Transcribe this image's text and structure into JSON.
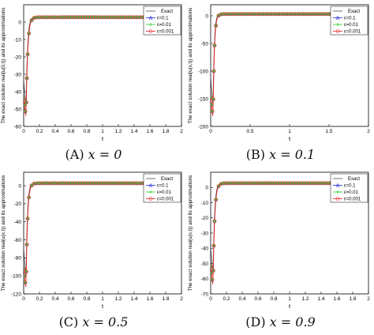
{
  "chart_data": [
    {
      "type": "line",
      "panel_label": "(A)",
      "caption_expr": "x = 0",
      "xlabel": "t",
      "ylabel": "The exact solution real(u(0,t)) and its approximations",
      "xlim": [
        0,
        2
      ],
      "ylim": [
        -60,
        10
      ],
      "xticks": [
        "0",
        "0.2",
        "0.4",
        "0.6",
        "0.8",
        "1",
        "1.2",
        "1.4",
        "1.6",
        "1.8",
        "2"
      ],
      "xtick_values": [
        0,
        0.2,
        0.4,
        0.6,
        0.8,
        1,
        1.2,
        1.4,
        1.6,
        1.8,
        2
      ],
      "yticks": [
        "-60",
        "-50",
        "-40",
        "-30",
        "-20",
        "-10",
        "0"
      ],
      "ytick_values": [
        -60,
        -50,
        -40,
        -30,
        -20,
        -10,
        0
      ],
      "legend": [
        "Exact",
        "ε=0.1",
        "ε=0.01",
        "ε=0.001"
      ],
      "legend_position": "top-right",
      "min_value": -55,
      "plateau": 2.8,
      "rise_rate": 50,
      "grid": false
    },
    {
      "type": "line",
      "panel_label": "(B)",
      "caption_expr": "x = 0.1",
      "xlabel": "t",
      "ylabel": "The exact solution real(u(x,t)) and its approximations",
      "xlim": [
        0,
        2
      ],
      "ylim": [
        -200,
        20
      ],
      "xticks": [
        "0",
        "0.5",
        "1",
        "1.5",
        "2"
      ],
      "xtick_values": [
        0,
        0.5,
        1,
        1.5,
        2
      ],
      "yticks": [
        "-200",
        "-150",
        "-100",
        "-50",
        "0"
      ],
      "ytick_values": [
        -200,
        -150,
        -100,
        -50,
        0
      ],
      "legend": [
        "Exact",
        "ε=0.1",
        "ε=0.01",
        "ε=0.001"
      ],
      "legend_position": "top-right",
      "min_value": -185,
      "plateau": 3.2,
      "rise_rate": 60,
      "grid": false
    },
    {
      "type": "line",
      "panel_label": "(C)",
      "caption_expr": "x = 0.5",
      "xlabel": "t",
      "ylabel": "The exact solution real(u(x,t)) and its approximations",
      "xlim": [
        0,
        2
      ],
      "ylim": [
        -120,
        15
      ],
      "xticks": [
        "0",
        "0.2",
        "0.4",
        "0.6",
        "0.8",
        "1",
        "1.2",
        "1.4",
        "1.6",
        "1.8",
        "2"
      ],
      "xtick_values": [
        0,
        0.2,
        0.4,
        0.6,
        0.8,
        1,
        1.2,
        1.4,
        1.6,
        1.8,
        2
      ],
      "yticks": [
        "-120",
        "-100",
        "-80",
        "-60",
        "-40",
        "-20",
        "0"
      ],
      "ytick_values": [
        -120,
        -100,
        -80,
        -60,
        -40,
        -20,
        0
      ],
      "legend": [
        "Exact",
        "ε=0.1",
        "ε=0.01",
        "ε=0.001"
      ],
      "legend_position": "top-right",
      "min_value": -115,
      "plateau": 2.8,
      "rise_rate": 55,
      "grid": false
    },
    {
      "type": "line",
      "panel_label": "(D)",
      "caption_expr": "x = 0.9",
      "xlabel": "t",
      "ylabel": "The exact solution real(u(x,t)) and its approximations",
      "xlim": [
        0,
        2
      ],
      "ylim": [
        -70,
        10
      ],
      "xticks": [
        "0",
        "0.2",
        "0.4",
        "0.6",
        "0.8",
        "1",
        "1.2",
        "1.4",
        "1.6",
        "1.8",
        "2"
      ],
      "xtick_values": [
        0,
        0.2,
        0.4,
        0.6,
        0.8,
        1,
        1.2,
        1.4,
        1.6,
        1.8,
        2
      ],
      "yticks": [
        "-70",
        "-60",
        "-50",
        "-40",
        "-30",
        "-20",
        "-10",
        "0"
      ],
      "ytick_values": [
        -70,
        -60,
        -50,
        -40,
        -30,
        -20,
        -10,
        0
      ],
      "legend": [
        "Exact",
        "ε=0.1",
        "ε=0.01",
        "ε=0.001"
      ],
      "legend_position": "top-right",
      "min_value": -65,
      "plateau": 2.8,
      "rise_rate": 50,
      "grid": false
    }
  ],
  "colors": {
    "exact": "#4d4d4d",
    "eps_01": "#2a2ae0",
    "eps_001": "#22cc22",
    "eps_0001": "#e02020",
    "marker_fill": "#b8a030",
    "axis": "#000000"
  }
}
